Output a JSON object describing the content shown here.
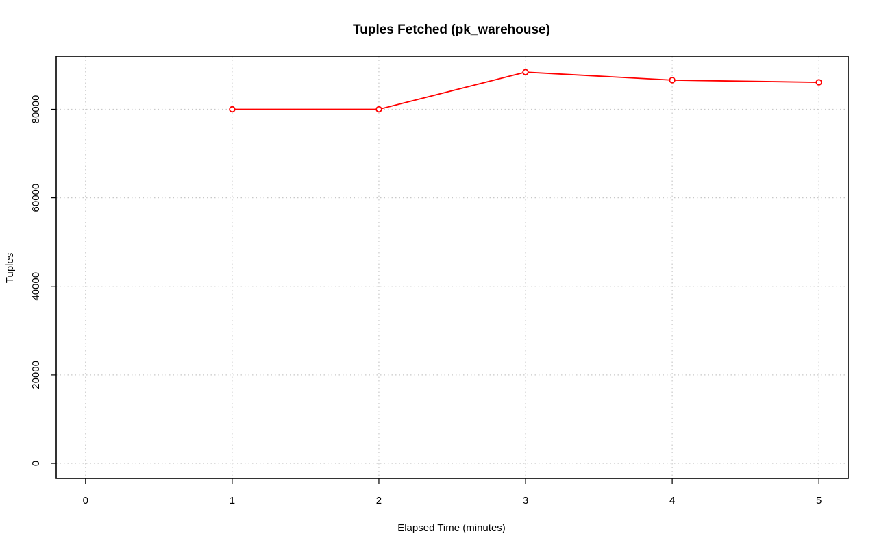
{
  "chart_data": {
    "type": "line",
    "title": "Tuples Fetched (pk_warehouse)",
    "xlabel": "Elapsed Time (minutes)",
    "ylabel": "Tuples",
    "xlim": [
      -0.2,
      5.2
    ],
    "ylim": [
      -3400,
      92000
    ],
    "x_ticks": [
      0,
      1,
      2,
      3,
      4,
      5
    ],
    "y_ticks": [
      0,
      20000,
      40000,
      60000,
      80000
    ],
    "grid": true,
    "series": [
      {
        "color": "#ff0000",
        "x": [
          1,
          2,
          3,
          4,
          5
        ],
        "values": [
          80000,
          80000,
          88400,
          86600,
          86100
        ]
      }
    ]
  }
}
